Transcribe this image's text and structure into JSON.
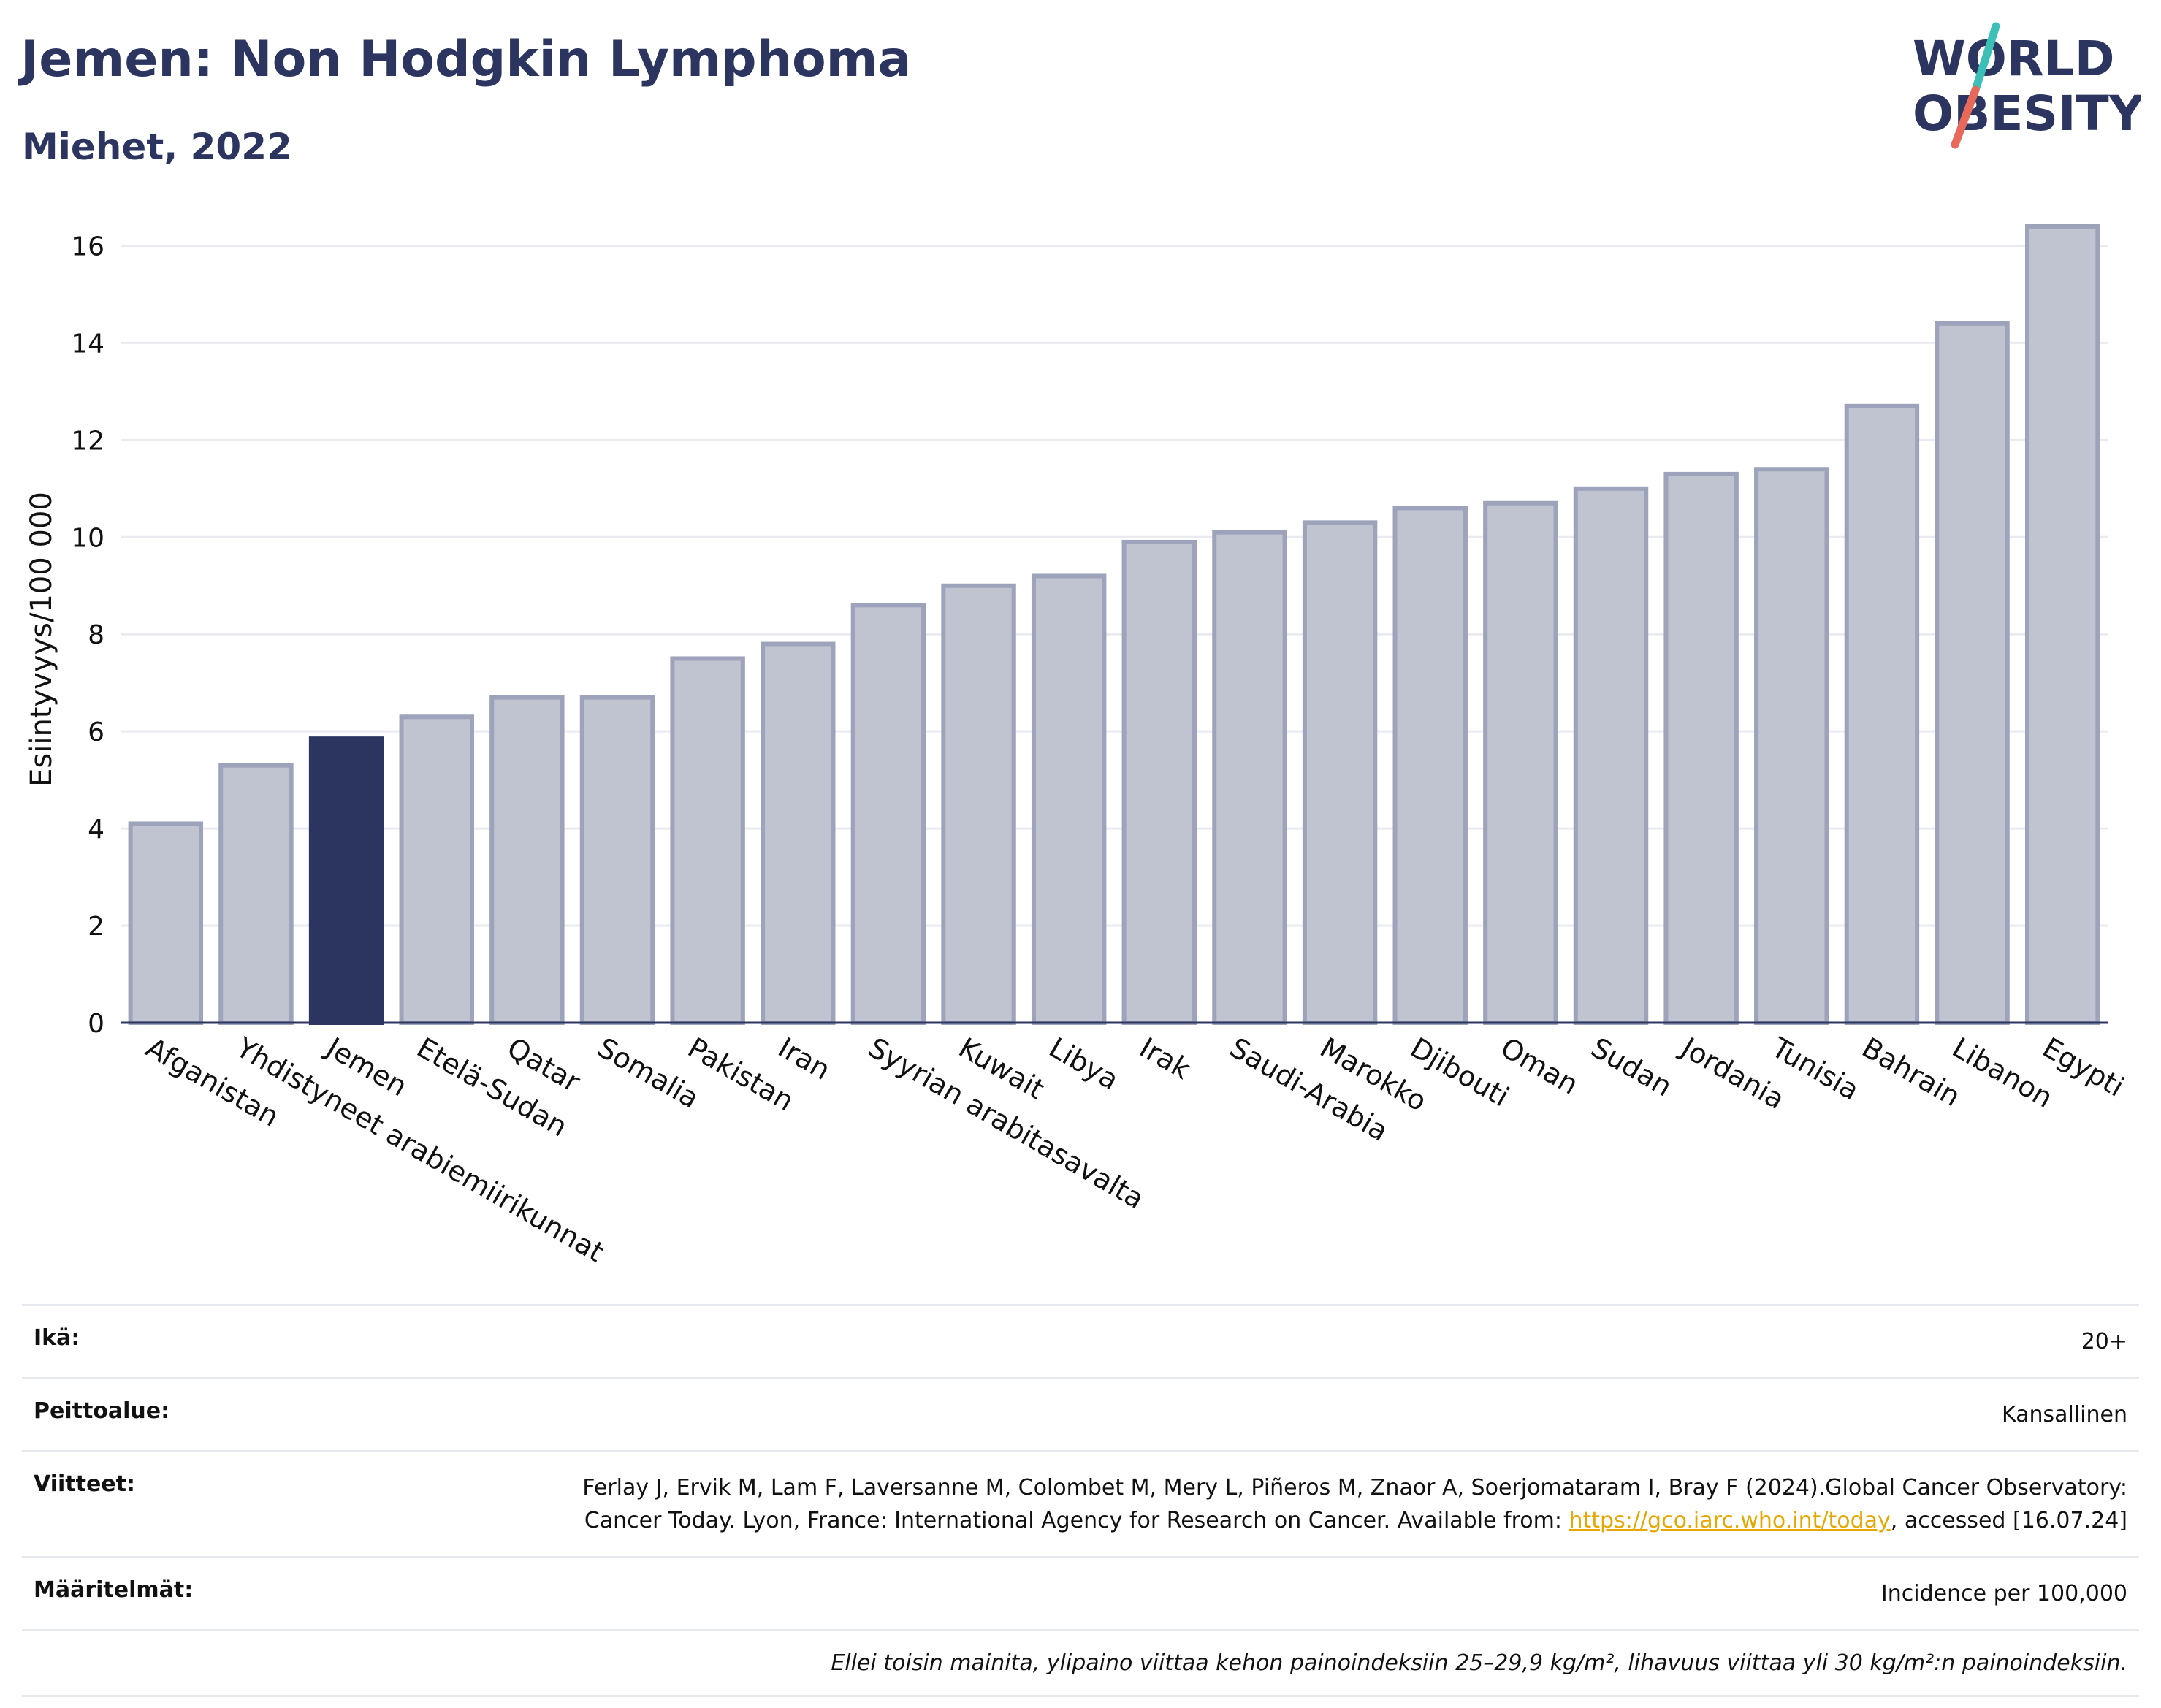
{
  "header": {
    "title": "Jemen: Non Hodgkin Lymphoma",
    "subtitle": "Miehet, 2022"
  },
  "logo": {
    "line1": "WORLD",
    "line2": "OBESITY",
    "text_color": "#2b3560",
    "slash_top_color": "#3bbfb6",
    "slash_bottom_color": "#e8685a"
  },
  "chart_data": {
    "type": "bar",
    "categories": [
      "Afganistan",
      "Yhdistyneet arabiemiirikunnat",
      "Jemen",
      "Etelä-Sudan",
      "Qatar",
      "Somalia",
      "Pakistan",
      "Iran",
      "Syyrian arabitasavalta",
      "Kuwait",
      "Libya",
      "Irak",
      "Saudi-Arabia",
      "Marokko",
      "Djibouti",
      "Oman",
      "Sudan",
      "Jordania",
      "Tunisia",
      "Bahrain",
      "Libanon",
      "Egypti"
    ],
    "values": [
      4.1,
      5.3,
      5.85,
      6.3,
      6.7,
      6.7,
      7.5,
      7.8,
      8.6,
      9.0,
      9.2,
      9.9,
      10.1,
      10.3,
      10.6,
      10.7,
      11.0,
      11.3,
      11.4,
      12.7,
      14.4,
      16.4
    ],
    "highlight": "Jemen",
    "ylabel": "Esiintyvyys/100 000",
    "xlabel": "",
    "ylim": [
      0,
      17
    ],
    "yticks": [
      0,
      2,
      4,
      6,
      8,
      10,
      12,
      14,
      16
    ],
    "grid": true,
    "colors": {
      "bar": "#c0c3d0",
      "bar_border": "#9da3ba",
      "highlight": "#2b3560",
      "grid": "#e9ebf0",
      "axis": "#2b3560"
    }
  },
  "info": {
    "age_label": "Ikä:",
    "age_value": "20+",
    "coverage_label": "Peittoalue:",
    "coverage_value": "Kansallinen",
    "references_label": "Viitteet:",
    "references_text": "Ferlay J, Ervik M, Lam F, Laversanne M, Colombet M, Mery L, Piñeros M, Znaor A, Soerjomataram I, Bray F (2024).Global Cancer Observatory: Cancer Today. Lyon, France: International Agency for Research on Cancer. Available from: ",
    "references_link": "https://gco.iarc.who.int/today",
    "references_suffix": ", accessed [16.07.24]",
    "definitions_label": "Määritelmät:",
    "definitions_value": "Incidence per 100,000",
    "note": "Ellei toisin mainita, ylipaino viittaa kehon painoindeksiin 25–29,9 kg/m², lihavuus viittaa yli 30 kg/m²:n painoindeksiin."
  }
}
